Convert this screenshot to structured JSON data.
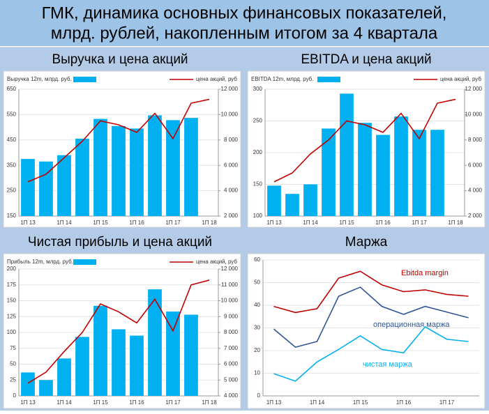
{
  "title": [
    "ГМК, динамика основных финансовых показателей,",
    "млрд. рублей, накопленным итогом за 4 квартала"
  ],
  "headings": [
    "Выручка и цена акций",
    "EBITDA и цена акций",
    "Чистая прибыль и цена акций",
    "Маржа"
  ],
  "chart_data": [
    {
      "type": "bar",
      "grid": true,
      "categories": [
        "1П 13",
        null,
        "1П 14",
        null,
        "1П 15",
        null,
        "1П 16",
        null,
        "1П 17",
        null,
        "1П 18"
      ],
      "series": [
        {
          "name": "Выручка 12m, млрд. руб.",
          "color": "#00b0f0",
          "type": "bar",
          "values": [
            375,
            365,
            390,
            455,
            533,
            505,
            495,
            547,
            528,
            537,
            null
          ]
        },
        {
          "name": "цена акций, руб",
          "color": "#c00000",
          "type": "line",
          "axis": "y2",
          "values": [
            4700,
            5300,
            6600,
            7900,
            9500,
            9200,
            8600,
            10100,
            8100,
            10900,
            11200
          ]
        }
      ],
      "ylim": [
        150,
        650
      ],
      "yticks": [
        150,
        250,
        350,
        450,
        550,
        650
      ],
      "y2lim": [
        2000,
        12000
      ],
      "y2ticks": [
        {
          "value": 2000,
          "label": "2 000"
        },
        {
          "value": 4000,
          "label": "4 000"
        },
        {
          "value": 6000,
          "label": "6 000"
        },
        {
          "value": 8000,
          "label": "8 000"
        },
        {
          "value": 10000,
          "label": "10 000"
        },
        {
          "value": 12000,
          "label": "12 000"
        }
      ]
    },
    {
      "type": "bar",
      "grid": true,
      "categories": [
        "1П 13",
        null,
        "1П 14",
        null,
        "1П 15",
        null,
        "1П 16",
        null,
        "1П 17",
        null,
        "1П 18"
      ],
      "series": [
        {
          "name": "EBITDA 12m, млрд. руб.",
          "color": "#00b0f0",
          "type": "bar",
          "values": [
            148,
            135,
            150,
            238,
            293,
            247,
            228,
            257,
            236,
            236,
            null
          ]
        },
        {
          "name": "цена акций, руб",
          "color": "#c00000",
          "type": "line",
          "axis": "y2",
          "values": [
            4700,
            5400,
            6900,
            8000,
            9500,
            9200,
            8600,
            10100,
            8100,
            10900,
            11200
          ]
        }
      ],
      "ylim": [
        100,
        300
      ],
      "yticks": [
        100,
        150,
        200,
        250,
        300
      ],
      "y2lim": [
        2000,
        12000
      ],
      "y2ticks": [
        {
          "value": 2000,
          "label": "2 000"
        },
        {
          "value": 4000,
          "label": "4 000"
        },
        {
          "value": 6000,
          "label": "6 000"
        },
        {
          "value": 8000,
          "label": "8 000"
        },
        {
          "value": 10000,
          "label": "10 000"
        },
        {
          "value": 12000,
          "label": "12 000"
        }
      ]
    },
    {
      "type": "bar",
      "grid": true,
      "categories": [
        "1П 13",
        null,
        "1П 14",
        null,
        "1П 15",
        null,
        "1П 16",
        null,
        "1П 17",
        null,
        "1П 18"
      ],
      "series": [
        {
          "name": "Прибыль 12m, млрд. руб.",
          "color": "#00b0f0",
          "type": "bar",
          "values": [
            37,
            25,
            59,
            93,
            142,
            105,
            95,
            168,
            133,
            128,
            null
          ]
        },
        {
          "name": "цена акций, руб",
          "color": "#c00000",
          "type": "line",
          "axis": "y2",
          "values": [
            4800,
            5500,
            6800,
            8000,
            9800,
            9300,
            8600,
            10100,
            8100,
            11000,
            11300
          ]
        }
      ],
      "ylim": [
        0,
        200
      ],
      "yticks": [
        0,
        25,
        50,
        75,
        100,
        125,
        150,
        175,
        200
      ],
      "y2lim": [
        4000,
        12000
      ],
      "y2ticks": [
        {
          "value": 4000,
          "label": "4 000"
        },
        {
          "value": 5000,
          "label": "5 000"
        },
        {
          "value": 6000,
          "label": "6 000"
        },
        {
          "value": 7000,
          "label": "7 000"
        },
        {
          "value": 8000,
          "label": "8 000"
        },
        {
          "value": 9000,
          "label": "9 000"
        },
        {
          "value": 10000,
          "label": "10 000"
        },
        {
          "value": 11000,
          "label": "11 000"
        },
        {
          "value": 12000,
          "label": "12 000"
        }
      ]
    },
    {
      "type": "line",
      "grid": true,
      "categories": [
        "1П 13",
        null,
        "1П 14",
        null,
        "1П 15",
        null,
        "1П 16",
        null,
        "1П 17",
        null
      ],
      "series": [
        {
          "name": "Ebitda margin",
          "color": "#c00000",
          "values": [
            39.5,
            36.8,
            38.5,
            52,
            55,
            49,
            46,
            46.8,
            44.8,
            44
          ]
        },
        {
          "name": "операционная маржа",
          "color": "#2f5597",
          "values": [
            29.5,
            21.5,
            24,
            44,
            48,
            39.5,
            36,
            39.5,
            37,
            34.5
          ]
        },
        {
          "name": "чистая маржа",
          "color": "#00b0f0",
          "values": [
            9.8,
            6.5,
            15,
            20.5,
            26.5,
            20.5,
            19,
            30.5,
            25,
            24
          ]
        }
      ],
      "ylim": [
        0,
        60
      ],
      "yticks": [
        0,
        10,
        20,
        30,
        40,
        50,
        60
      ]
    }
  ]
}
